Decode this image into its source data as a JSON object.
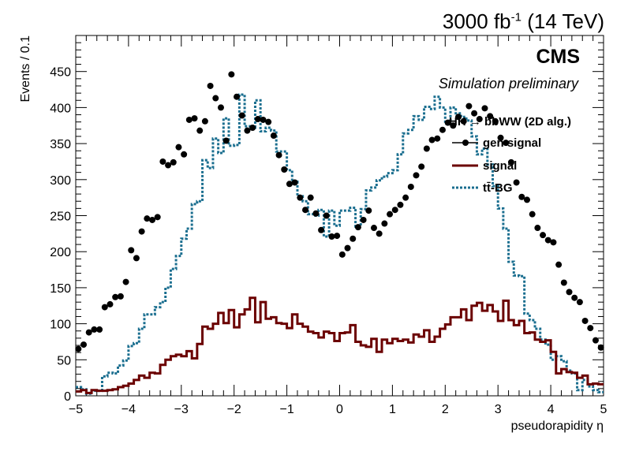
{
  "header": {
    "luminosity": "3000",
    "lumi_unit": "fb",
    "lumi_exp": "-1",
    "energy": "(14 TeV)"
  },
  "labels": {
    "cms": "CMS",
    "simulation": "Simulation preliminary"
  },
  "colors": {
    "gen_signal": "#000000",
    "signal": "#6b0000",
    "tt_bg": "#1a6e8f"
  },
  "chart_data": {
    "type": "line",
    "xlabel": "pseudorapidity η",
    "ylabel": "Events / 0.1",
    "xlim": [
      -5,
      5
    ],
    "ylim": [
      0,
      500
    ],
    "xticks": [
      -5,
      -4,
      -3,
      -2,
      -1,
      0,
      1,
      2,
      3,
      4,
      5
    ],
    "yticks": [
      0,
      50,
      100,
      150,
      200,
      250,
      300,
      350,
      400,
      450
    ],
    "legend": {
      "placement": "top-right",
      "title": "HH → bbWW (2D alg.)",
      "entries": [
        "gen signal",
        "signal",
        "tt̄-BG"
      ]
    },
    "bin_edges_start": -5,
    "bin_width": 0.1,
    "series": [
      {
        "name": "gen signal",
        "style": "markers",
        "values": [
          65,
          71,
          88,
          92,
          92,
          123,
          127,
          137,
          138,
          158,
          202,
          191,
          228,
          246,
          244,
          248,
          325,
          320,
          324,
          345,
          335,
          383,
          385,
          368,
          381,
          430,
          413,
          400,
          354,
          446,
          415,
          389,
          368,
          372,
          384,
          383,
          380,
          361,
          334,
          314,
          294,
          296,
          275,
          258,
          275,
          253,
          230,
          250,
          221,
          222,
          196,
          205,
          218,
          234,
          244,
          257,
          233,
          225,
          239,
          252,
          258,
          265,
          275,
          290,
          306,
          318,
          343,
          355,
          357,
          369,
          379,
          375,
          387,
          381,
          402,
          392,
          384,
          399,
          388,
          381,
          358,
          351,
          324,
          296,
          276,
          272,
          252,
          233,
          223,
          216,
          213,
          182,
          157,
          144,
          136,
          130,
          104,
          94,
          77,
          67
        ]
      },
      {
        "name": "signal",
        "style": "step-solid",
        "values": [
          6,
          8,
          4,
          8,
          7,
          7,
          8,
          9,
          12,
          14,
          17,
          22,
          28,
          25,
          32,
          31,
          43,
          50,
          55,
          57,
          55,
          62,
          52,
          72,
          96,
          93,
          100,
          115,
          101,
          119,
          95,
          113,
          120,
          136,
          102,
          130,
          107,
          109,
          101,
          100,
          94,
          113,
          100,
          96,
          89,
          87,
          81,
          89,
          87,
          76,
          87,
          88,
          98,
          75,
          70,
          68,
          79,
          61,
          78,
          73,
          79,
          76,
          78,
          74,
          85,
          82,
          91,
          75,
          82,
          93,
          99,
          109,
          109,
          120,
          105,
          125,
          129,
          118,
          126,
          117,
          104,
          132,
          105,
          98,
          104,
          87,
          88,
          78,
          75,
          77,
          61,
          31,
          37,
          33,
          32,
          25,
          28,
          16,
          17,
          16
        ]
      },
      {
        "name": "tt̄-BG",
        "style": "step-dotted",
        "values": [
          12,
          9,
          3,
          7,
          7,
          27,
          32,
          31,
          42,
          49,
          69,
          73,
          93,
          113,
          113,
          123,
          130,
          150,
          176,
          194,
          218,
          232,
          266,
          270,
          327,
          316,
          357,
          337,
          385,
          347,
          348,
          418,
          374,
          372,
          410,
          367,
          372,
          368,
          339,
          339,
          313,
          297,
          277,
          270,
          252,
          250,
          258,
          221,
          257,
          236,
          257,
          257,
          261,
          235,
          259,
          285,
          289,
          299,
          304,
          309,
          313,
          335,
          364,
          369,
          388,
          383,
          401,
          398,
          415,
          400,
          377,
          400,
          392,
          387,
          382,
          360,
          335,
          343,
          321,
          291,
          260,
          232,
          186,
          167,
          166,
          114,
          105,
          93,
          78,
          71,
          50,
          55,
          48,
          35,
          31,
          8,
          22,
          13,
          8,
          5
        ]
      }
    ]
  }
}
